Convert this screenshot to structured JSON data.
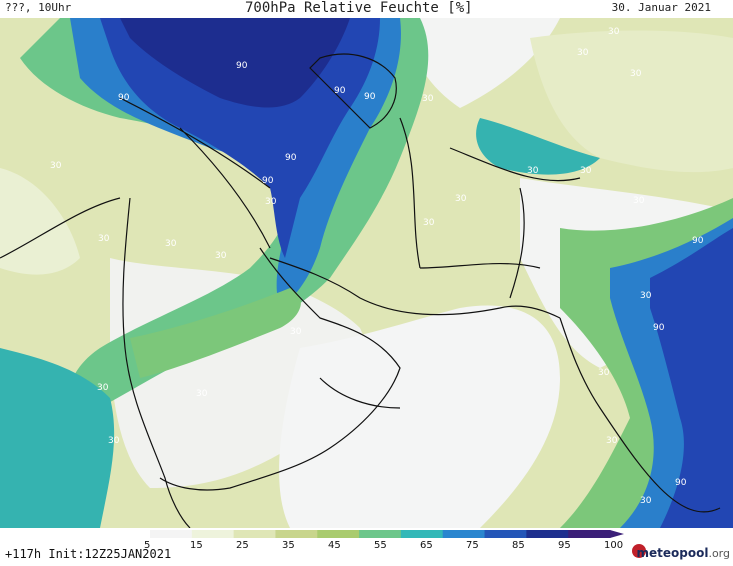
{
  "header": {
    "left": "???, 10Uhr",
    "title": "700hPa Relative Feuchte [%]",
    "date": "30. Januar 2021"
  },
  "legend": {
    "ticks": [
      "5",
      "15",
      "25",
      "35",
      "45",
      "55",
      "65",
      "75",
      "85",
      "95",
      "100"
    ],
    "colors": [
      "#f4f4f4",
      "#eef3dc",
      "#dfe6b6",
      "#c8d58c",
      "#a9cb6e",
      "#6cc68a",
      "#33b8b8",
      "#2a86cf",
      "#2456b8",
      "#1e2f8e",
      "#3b1f78"
    ]
  },
  "footer": {
    "init": "+117h Init:12Z25JAN2021",
    "brand": "meteopool",
    "brand_tld": ".org"
  },
  "contour_labels": {
    "thirty": "30",
    "ninety": "90"
  },
  "colors": {
    "dry": "#f2f3f3",
    "light": "#e4ebc8",
    "olive": "#c9d48f",
    "green": "#7cc77a",
    "teal": "#35b3b0",
    "blue": "#2a7fcb",
    "dark_blue": "#2246b3",
    "navy": "#1d2d8f"
  }
}
